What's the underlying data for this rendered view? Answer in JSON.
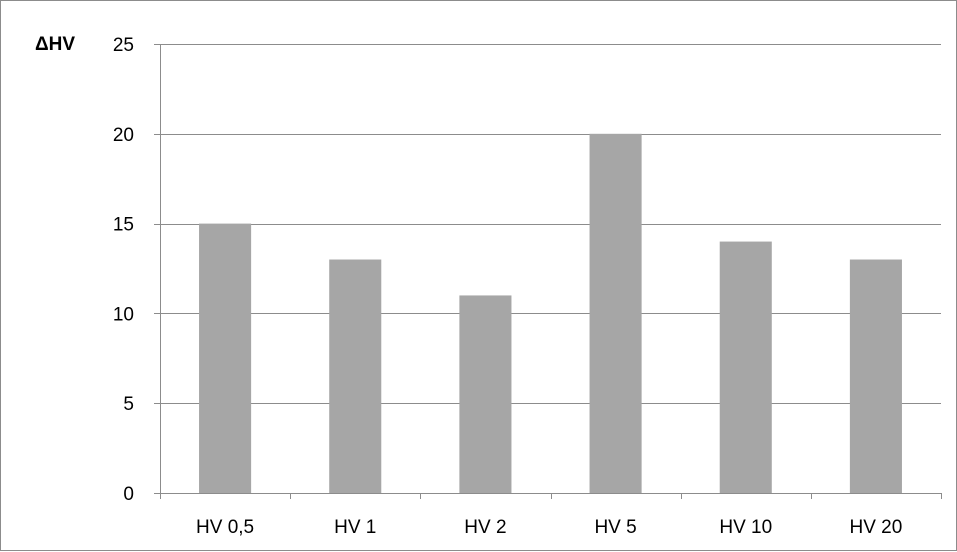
{
  "chart_data": {
    "type": "bar",
    "title": "",
    "xlabel": "",
    "ylabel": "ΔHV",
    "categories": [
      "HV 0,5",
      "HV 1",
      "HV 2",
      "HV 5",
      "HV 10",
      "HV 20"
    ],
    "values": [
      15,
      13,
      11,
      20,
      14,
      13
    ],
    "ylim": [
      0,
      25
    ],
    "yticks": [
      "0",
      "5",
      "10",
      "15",
      "20",
      "25"
    ],
    "grid": true,
    "legend": "none",
    "colors": {
      "bar": "#a6a6a6",
      "grid": "#8c8c8c",
      "axis": "#8c8c8c",
      "frame": "#8c8c8c"
    }
  }
}
